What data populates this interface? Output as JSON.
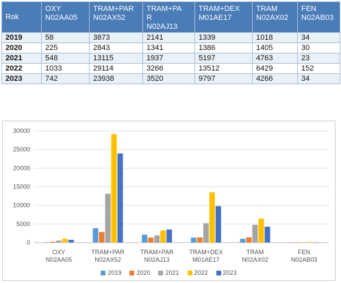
{
  "table": {
    "headers": [
      {
        "lines": [
          "Rok"
        ]
      },
      {
        "lines": [
          "OXY",
          "N02AA05"
        ]
      },
      {
        "lines": [
          "TRAM+PAR",
          "N02AX52"
        ]
      },
      {
        "lines": [
          "TRAM+PA",
          "R",
          "N02AJ13"
        ]
      },
      {
        "lines": [
          "TRAM+DEX",
          "M01AE17"
        ]
      },
      {
        "lines": [
          "TRAM",
          "N02AX02"
        ]
      },
      {
        "lines": [
          "FEN",
          "N02AB03"
        ]
      }
    ],
    "rows": [
      [
        "2019",
        "58",
        "3873",
        "2141",
        "1339",
        "1018",
        "34"
      ],
      [
        "2020",
        "225",
        "2843",
        "1341",
        "1386",
        "1405",
        "30"
      ],
      [
        "2021",
        "548",
        "13115",
        "1937",
        "5197",
        "4763",
        "23"
      ],
      [
        "2022",
        "1033",
        "29114",
        "3266",
        "13512",
        "6429",
        "152"
      ],
      [
        "2023",
        "742",
        "23938",
        "3520",
        "9797",
        "4266",
        "34"
      ]
    ]
  },
  "chart_data": {
    "type": "bar",
    "categories": [
      [
        "OXY",
        "N02AA05"
      ],
      [
        "TRAM+PAR",
        "N02AX52"
      ],
      [
        "TRAM+PAR",
        "N02AJ13"
      ],
      [
        "TRAM+DEX",
        "M01AE17"
      ],
      [
        "TRAM",
        "N02AX02"
      ],
      [
        "FEN",
        "N02AB03"
      ]
    ],
    "series": [
      {
        "name": "2019",
        "color": "#5b9bd5",
        "values": [
          58,
          3873,
          2141,
          1339,
          1018,
          34
        ]
      },
      {
        "name": "2020",
        "color": "#ed7d31",
        "values": [
          225,
          2843,
          1341,
          1386,
          1405,
          30
        ]
      },
      {
        "name": "2021",
        "color": "#a5a5a5",
        "values": [
          548,
          13115,
          1937,
          5197,
          4763,
          23
        ]
      },
      {
        "name": "2022",
        "color": "#ffc000",
        "values": [
          1033,
          29114,
          3266,
          13512,
          6429,
          152
        ]
      },
      {
        "name": "2023",
        "color": "#4472c4",
        "values": [
          742,
          23938,
          3520,
          9797,
          4266,
          34
        ]
      }
    ],
    "ylim": [
      0,
      30000
    ],
    "yticks": [
      "0",
      "5000",
      "10000",
      "15000",
      "20000",
      "25000",
      "30000"
    ],
    "grid": true,
    "legend_position": "bottom",
    "title": "",
    "xlabel": "",
    "ylabel": ""
  }
}
